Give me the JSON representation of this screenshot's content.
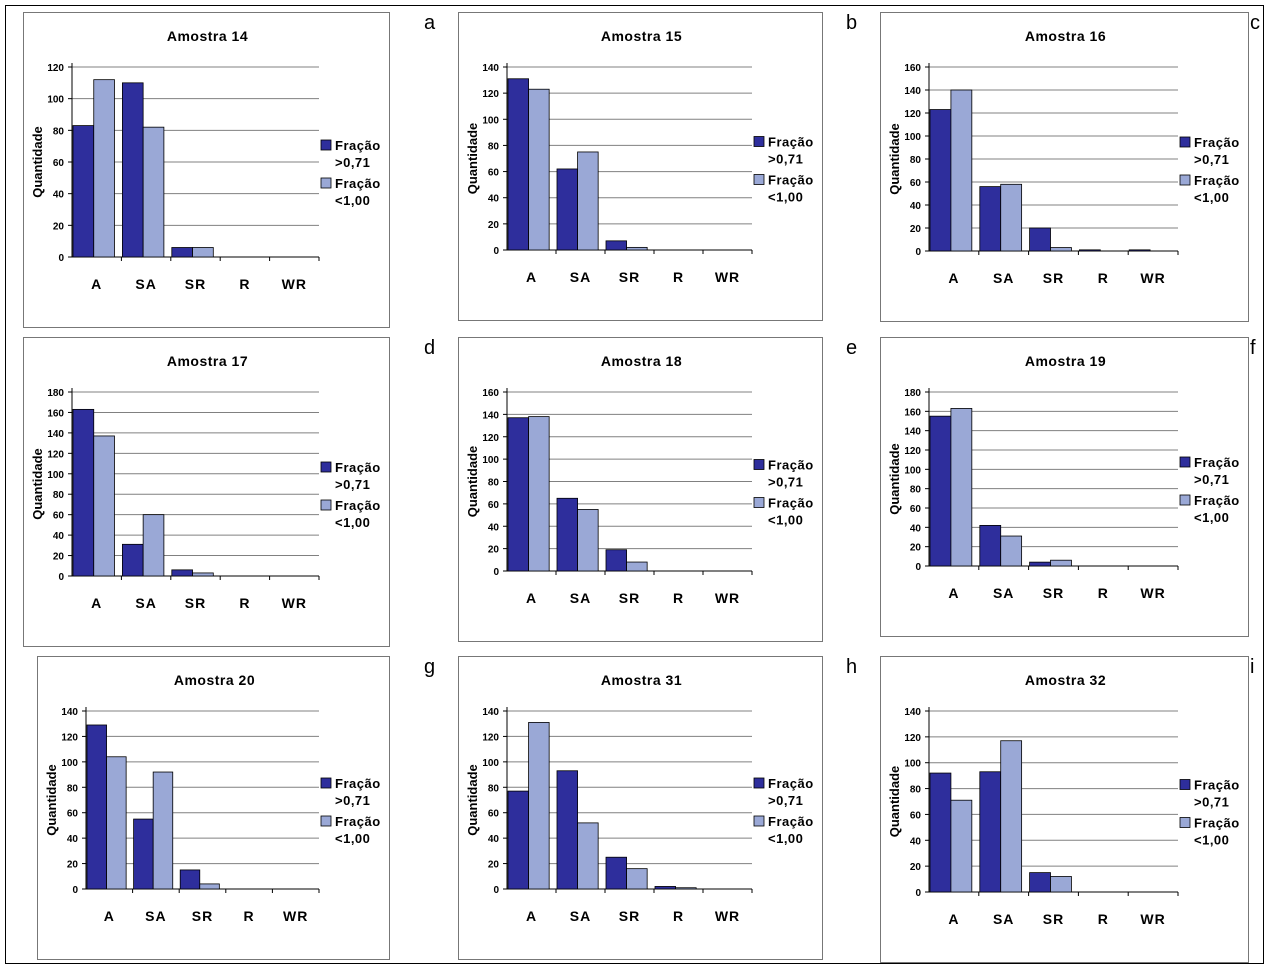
{
  "figure": {
    "panel_letters": [
      "a",
      "b",
      "c",
      "d",
      "e",
      "f",
      "g",
      "h",
      "i"
    ]
  },
  "colors": {
    "series_dark": "#2e2e9c",
    "series_light": "#9aa8d6",
    "grid": "#808080"
  },
  "chart_data": [
    {
      "type": "bar",
      "title": "Amostra 14",
      "ylabel": "Quantidade",
      "xlabel": "",
      "categories": [
        "A",
        "SA",
        "SR",
        "R",
        "WR"
      ],
      "ylim": [
        0,
        120
      ],
      "ytick_step": 20,
      "grid": true,
      "legend": "right",
      "series": [
        {
          "name": "Fração >0,71",
          "values": [
            83,
            110,
            6,
            0,
            0
          ]
        },
        {
          "name": "Fração <1,00",
          "values": [
            112,
            82,
            6,
            0,
            0
          ]
        }
      ]
    },
    {
      "type": "bar",
      "title": "Amostra 15",
      "ylabel": "Quantidade",
      "xlabel": "",
      "categories": [
        "A",
        "SA",
        "SR",
        "R",
        "WR"
      ],
      "ylim": [
        0,
        140
      ],
      "ytick_step": 20,
      "grid": true,
      "legend": "right",
      "series": [
        {
          "name": "Fração >0,71",
          "values": [
            131,
            62,
            7,
            0,
            0
          ]
        },
        {
          "name": "Fração <1,00",
          "values": [
            123,
            75,
            2,
            0,
            0
          ]
        }
      ]
    },
    {
      "type": "bar",
      "title": "Amostra 16",
      "ylabel": "Quantidade",
      "xlabel": "",
      "categories": [
        "A",
        "SA",
        "SR",
        "R",
        "WR"
      ],
      "ylim": [
        0,
        160
      ],
      "ytick_step": 20,
      "grid": true,
      "legend": "right",
      "series": [
        {
          "name": "Fração >0,71",
          "values": [
            123,
            56,
            20,
            1,
            1
          ]
        },
        {
          "name": "Fração <1,00",
          "values": [
            140,
            58,
            3,
            0,
            0
          ]
        }
      ]
    },
    {
      "type": "bar",
      "title": "Amostra 17",
      "ylabel": "Quantidade",
      "xlabel": "",
      "categories": [
        "A",
        "SA",
        "SR",
        "R",
        "WR"
      ],
      "ylim": [
        0,
        180
      ],
      "ytick_step": 20,
      "grid": true,
      "legend": "right",
      "series": [
        {
          "name": "Fração >0,71",
          "values": [
            163,
            31,
            6,
            0,
            0
          ]
        },
        {
          "name": "Fração <1,00",
          "values": [
            137,
            60,
            3,
            0,
            0
          ]
        }
      ]
    },
    {
      "type": "bar",
      "title": "Amostra 18",
      "ylabel": "Quantidade",
      "xlabel": "",
      "categories": [
        "A",
        "SA",
        "SR",
        "R",
        "WR"
      ],
      "ylim": [
        0,
        160
      ],
      "ytick_step": 20,
      "grid": true,
      "legend": "right",
      "series": [
        {
          "name": "Fração >0,71",
          "values": [
            137,
            65,
            19,
            0,
            0
          ]
        },
        {
          "name": "Fração <1,00",
          "values": [
            138,
            55,
            8,
            0,
            0
          ]
        }
      ]
    },
    {
      "type": "bar",
      "title": "Amostra 19",
      "ylabel": "Quantidade",
      "xlabel": "",
      "categories": [
        "A",
        "SA",
        "SR",
        "R",
        "WR"
      ],
      "ylim": [
        0,
        180
      ],
      "ytick_step": 20,
      "grid": true,
      "legend": "right",
      "series": [
        {
          "name": "Fração >0,71",
          "values": [
            155,
            42,
            4,
            0,
            0
          ]
        },
        {
          "name": "Fração <1,00",
          "values": [
            163,
            31,
            6,
            0,
            0
          ]
        }
      ]
    },
    {
      "type": "bar",
      "title": "Amostra 20",
      "ylabel": "Quantidade",
      "xlabel": "",
      "categories": [
        "A",
        "SA",
        "SR",
        "R",
        "WR"
      ],
      "ylim": [
        0,
        140
      ],
      "ytick_step": 20,
      "grid": true,
      "legend": "right",
      "series": [
        {
          "name": "Fração >0,71",
          "values": [
            129,
            55,
            15,
            0,
            0
          ]
        },
        {
          "name": "Fração <1,00",
          "values": [
            104,
            92,
            4,
            0,
            0
          ]
        }
      ]
    },
    {
      "type": "bar",
      "title": "Amostra 31",
      "ylabel": "Quantidade",
      "xlabel": "",
      "categories": [
        "A",
        "SA",
        "SR",
        "R",
        "WR"
      ],
      "ylim": [
        0,
        140
      ],
      "ytick_step": 20,
      "grid": true,
      "legend": "right",
      "series": [
        {
          "name": "Fração >0,71",
          "values": [
            77,
            93,
            25,
            2,
            0
          ]
        },
        {
          "name": "Fração <1,00",
          "values": [
            131,
            52,
            16,
            1,
            0
          ]
        }
      ]
    },
    {
      "type": "bar",
      "title": "Amostra 32",
      "ylabel": "Quantidade",
      "xlabel": "",
      "categories": [
        "A",
        "SA",
        "SR",
        "R",
        "WR"
      ],
      "ylim": [
        0,
        140
      ],
      "ytick_step": 20,
      "grid": true,
      "legend": "right",
      "series": [
        {
          "name": "Fração >0,71",
          "values": [
            92,
            93,
            15,
            0,
            0
          ]
        },
        {
          "name": "Fração <1,00",
          "values": [
            71,
            117,
            12,
            0,
            0
          ]
        }
      ]
    }
  ]
}
